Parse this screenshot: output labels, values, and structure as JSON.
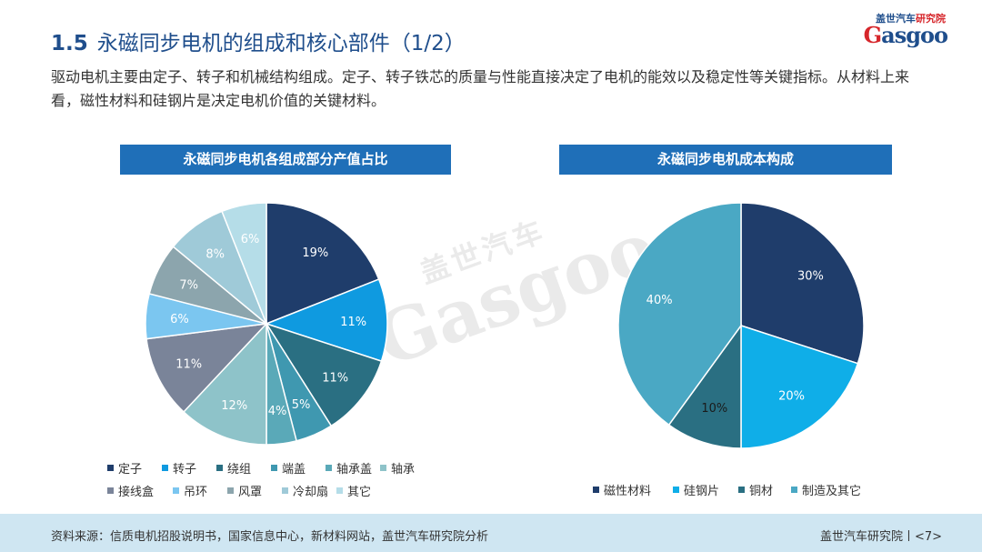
{
  "header": {
    "section": "1.5",
    "title": "永磁同步电机的组成和核心部件（1/2）",
    "intro": "驱动电机主要由定子、转子和机械结构组成。定子、转子铁芯的质量与性能直接决定了电机的能效以及稳定性等关键指标。从材料上来看，磁性材料和硅钢片是决定电机价值的关键材料。"
  },
  "logo": {
    "cn_brand": "盖世汽车",
    "cn_suffix": "研究院",
    "en_first": "G",
    "en_rest": "asgoo"
  },
  "watermark": {
    "cn": "盖世汽车",
    "en": "Gasgoo"
  },
  "chart_data": [
    {
      "type": "pie",
      "title": "永磁同步电机各组成部分产值占比",
      "categories": [
        "定子",
        "转子",
        "绕组",
        "端盖",
        "轴承盖",
        "轴承",
        "接线盒",
        "吊环",
        "风罩",
        "冷却扇",
        "其它"
      ],
      "values": [
        19,
        11,
        11,
        5,
        4,
        12,
        11,
        6,
        7,
        8,
        6
      ],
      "labels": [
        "19%",
        "11%",
        "11%",
        "5%",
        "4%",
        "12%",
        "11%",
        "6%",
        "7%",
        "8%",
        "6%"
      ],
      "colors": [
        "#1f3d6b",
        "#0f9ae0",
        "#2a6f82",
        "#3f98b0",
        "#5aa9b8",
        "#8ec3c9",
        "#7a8499",
        "#7bc6f0",
        "#8ca5ad",
        "#9fcad8",
        "#b5dde8"
      ],
      "legend_position": "bottom"
    },
    {
      "type": "pie",
      "title": "永磁同步电机成本构成",
      "categories": [
        "磁性材料",
        "硅钢片",
        "铜材",
        "制造及其它"
      ],
      "values": [
        30,
        20,
        10,
        40
      ],
      "labels": [
        "30%",
        "20%",
        "10%",
        "40%"
      ],
      "colors": [
        "#1f3d6b",
        "#0faee8",
        "#2a6f82",
        "#4aa8c4"
      ],
      "legend_position": "bottom"
    }
  ],
  "footer": {
    "source": "资料来源：信质电机招股说明书，国家信息中心，新材料网站，盖世汽车研究院分析",
    "org": "盖世汽车研究院丨<7>"
  }
}
